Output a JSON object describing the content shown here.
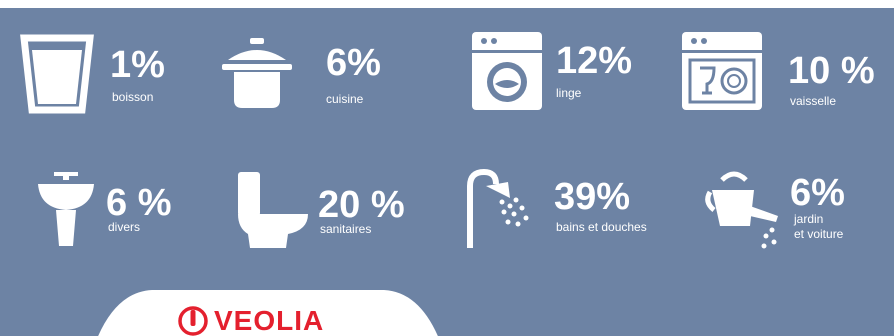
{
  "colors": {
    "background": "#6d83a4",
    "icon": "#ffffff",
    "brand_red": "#e4202e"
  },
  "items": [
    {
      "percent": "1%",
      "label": "boisson",
      "icon": "glass-of-water-icon"
    },
    {
      "percent": "6%",
      "label": "cuisine",
      "icon": "cooking-pot-icon"
    },
    {
      "percent": "12%",
      "label": "linge",
      "icon": "washing-machine-icon"
    },
    {
      "percent": "10 %",
      "label": "vaisselle",
      "icon": "dishwasher-icon"
    },
    {
      "percent": "6 %",
      "label": "divers",
      "icon": "sink-icon"
    },
    {
      "percent": "20 %",
      "label": "sanitaires",
      "icon": "toilet-icon"
    },
    {
      "percent": "39%",
      "label": "bains et douches",
      "icon": "shower-icon"
    },
    {
      "percent": "6%",
      "label": "jardin\net voiture",
      "icon": "watering-can-icon"
    }
  ],
  "brand": {
    "name": "VEOLIA",
    "icon": "veolia-logo-icon"
  }
}
